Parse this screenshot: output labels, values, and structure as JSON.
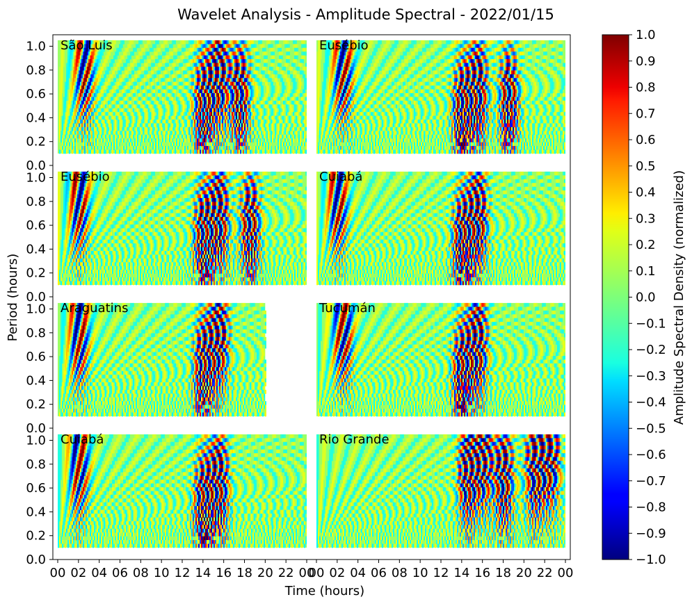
{
  "chart_data": {
    "type": "heatmap",
    "title": "Wavelet Analysis - Amplitude Spectral - 2022/01/15",
    "xlabel": "Time (hours)",
    "ylabel": "Period (hours)",
    "x_ticks": [
      "00",
      "02",
      "04",
      "06",
      "08",
      "10",
      "12",
      "14",
      "16",
      "18",
      "20",
      "22",
      "00"
    ],
    "y_ticks": [
      "0.0",
      "0.2",
      "0.4",
      "0.6",
      "0.8",
      "1.0"
    ],
    "xlim_hours": [
      0,
      24
    ],
    "ylim": [
      0.0,
      1.1
    ],
    "period_range": [
      0.1,
      1.05
    ],
    "colorbar": {
      "label": "Amplitude Spectral Density (normalized)",
      "range": [
        -1.0,
        1.0
      ],
      "ticks": [
        "1.0",
        "0.9",
        "0.8",
        "0.7",
        "0.6",
        "0.5",
        "0.4",
        "0.3",
        "0.2",
        "0.1",
        "0.0",
        "−0.1",
        "−0.2",
        "−0.3",
        "−0.4",
        "−0.5",
        "−0.6",
        "−0.7",
        "−0.8",
        "−0.9",
        "−1.0"
      ],
      "colormap": "jet"
    },
    "panels": [
      {
        "station": "São Luis",
        "data_end_hour": 24,
        "strong_events": [
          {
            "t": 2.5,
            "p": 0.85
          },
          {
            "t": 14.0,
            "p": 0.5
          },
          {
            "t": 15.5,
            "p": 0.8
          },
          {
            "t": 17.5,
            "p": 0.6
          }
        ]
      },
      {
        "station": "Eusébio",
        "data_end_hour": 24,
        "strong_events": [
          {
            "t": 2.5,
            "p": 0.85
          },
          {
            "t": 14.0,
            "p": 0.45
          },
          {
            "t": 15.5,
            "p": 0.65
          },
          {
            "t": 18.5,
            "p": 0.55
          }
        ]
      },
      {
        "station": "Eusébio",
        "data_end_hour": 24,
        "strong_events": [
          {
            "t": 2.0,
            "p": 0.85
          },
          {
            "t": 14.0,
            "p": 0.5
          },
          {
            "t": 15.5,
            "p": 0.7
          },
          {
            "t": 18.5,
            "p": 0.6
          }
        ]
      },
      {
        "station": "Cuiabá",
        "data_end_hour": 24,
        "strong_events": [
          {
            "t": 2.0,
            "p": 0.85
          },
          {
            "t": 14.0,
            "p": 0.45
          },
          {
            "t": 15.5,
            "p": 0.7
          }
        ]
      },
      {
        "station": "Araguatins",
        "data_end_hour": 20,
        "strong_events": [
          {
            "t": 2.0,
            "p": 0.85
          },
          {
            "t": 14.0,
            "p": 0.5
          },
          {
            "t": 15.5,
            "p": 0.8
          }
        ]
      },
      {
        "station": "Tucumán",
        "data_end_hour": 24,
        "strong_events": [
          {
            "t": 2.5,
            "p": 0.85
          },
          {
            "t": 14.0,
            "p": 0.45
          },
          {
            "t": 15.5,
            "p": 0.75
          }
        ]
      },
      {
        "station": "Cuiabá",
        "data_end_hour": 24,
        "strong_events": [
          {
            "t": 2.0,
            "p": 0.85
          },
          {
            "t": 14.0,
            "p": 0.45
          },
          {
            "t": 15.5,
            "p": 0.65
          }
        ]
      },
      {
        "station": "Rio Grande",
        "data_end_hour": 24,
        "strong_events": [
          {
            "t": 14.5,
            "p": 0.75
          },
          {
            "t": 16.0,
            "p": 0.9
          },
          {
            "t": 18.0,
            "p": 0.7
          },
          {
            "t": 21.0,
            "p": 0.8
          },
          {
            "t": 22.5,
            "p": 0.9
          }
        ]
      }
    ]
  }
}
